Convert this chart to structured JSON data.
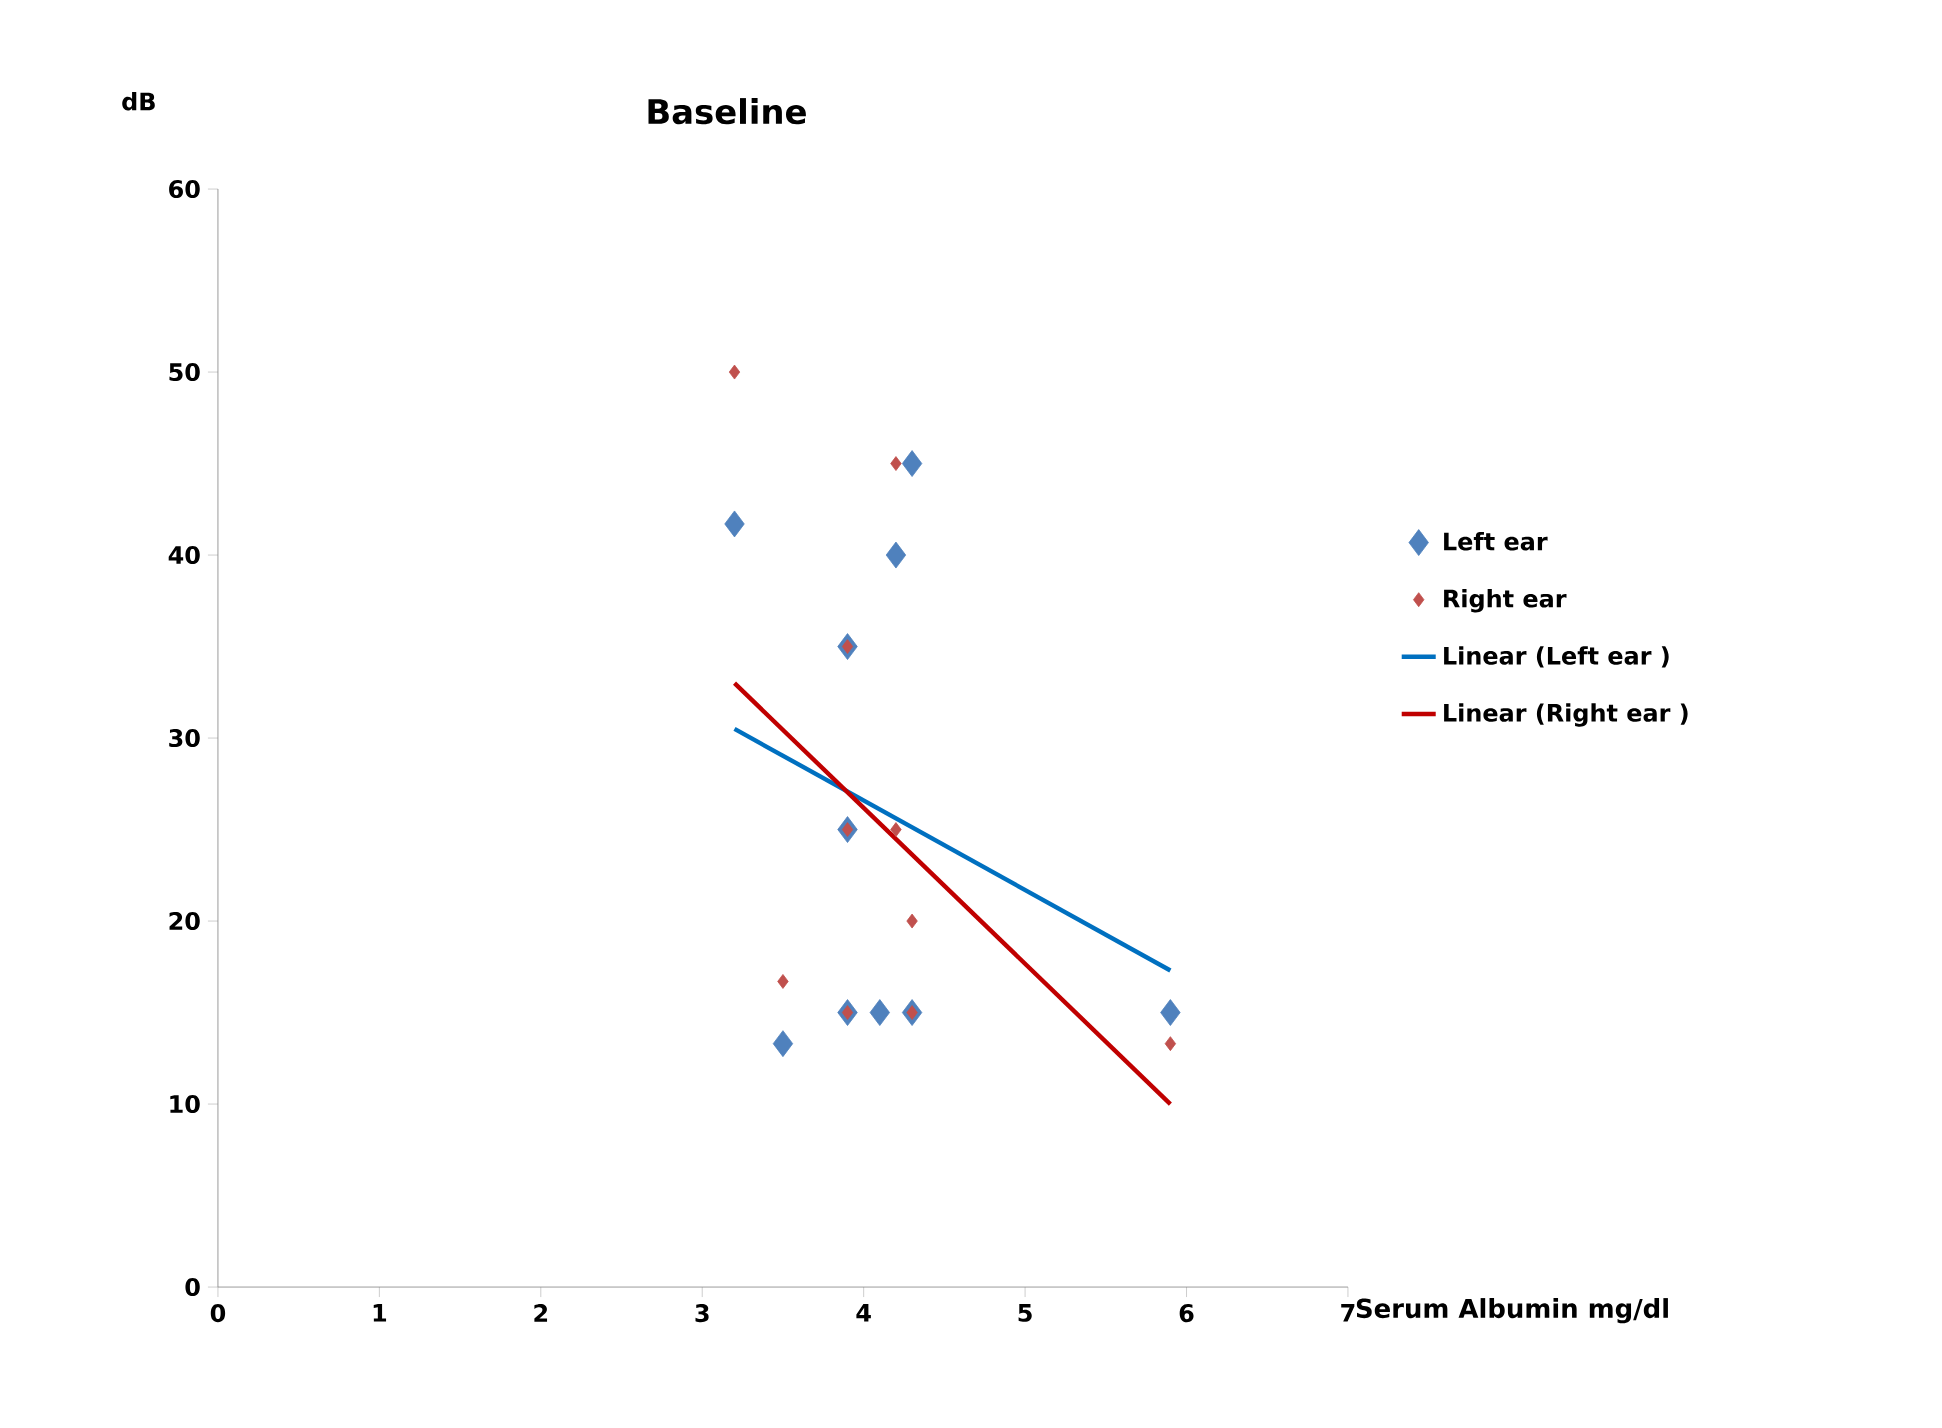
{
  "chart_data": {
    "type": "scatter",
    "title": "Baseline",
    "xlabel": "Serum Albumin mg/dl",
    "ylabel": "dB",
    "xlim": [
      0,
      7
    ],
    "xticks": [
      0,
      1,
      2,
      3,
      4,
      5,
      6,
      7
    ],
    "ylim": [
      0,
      60
    ],
    "yticks": [
      0,
      10,
      20,
      30,
      40,
      50,
      60
    ],
    "legend": "right",
    "marker": "diamond",
    "series": [
      {
        "name": "Left ear",
        "color": "#4f81bd",
        "x": [
          3.2,
          4.3,
          4.2,
          3.9,
          3.9,
          3.9,
          4.1,
          4.3,
          3.5,
          5.9
        ],
        "values": [
          41.7,
          45,
          40,
          35,
          25,
          15,
          15,
          15,
          13.3,
          15
        ]
      },
      {
        "name": "Right ear",
        "color": "#c0504d",
        "x": [
          3.2,
          4.2,
          3.9,
          3.9,
          4.2,
          3.5,
          4.3,
          3.9,
          4.3,
          5.9
        ],
        "values": [
          50,
          45,
          35,
          25,
          25,
          16.7,
          20,
          15,
          15,
          13.3
        ]
      },
      {
        "name": "Linear (Left ear )",
        "type": "line",
        "marker": "none",
        "color": "#0070c0",
        "x": [
          3.2,
          5.9
        ],
        "values": [
          30.5,
          17.3
        ]
      },
      {
        "name": "Linear (Right ear )",
        "type": "line",
        "marker": "none",
        "color": "#c00000",
        "x": [
          3.2,
          5.9
        ],
        "values": [
          33,
          10
        ]
      }
    ]
  }
}
